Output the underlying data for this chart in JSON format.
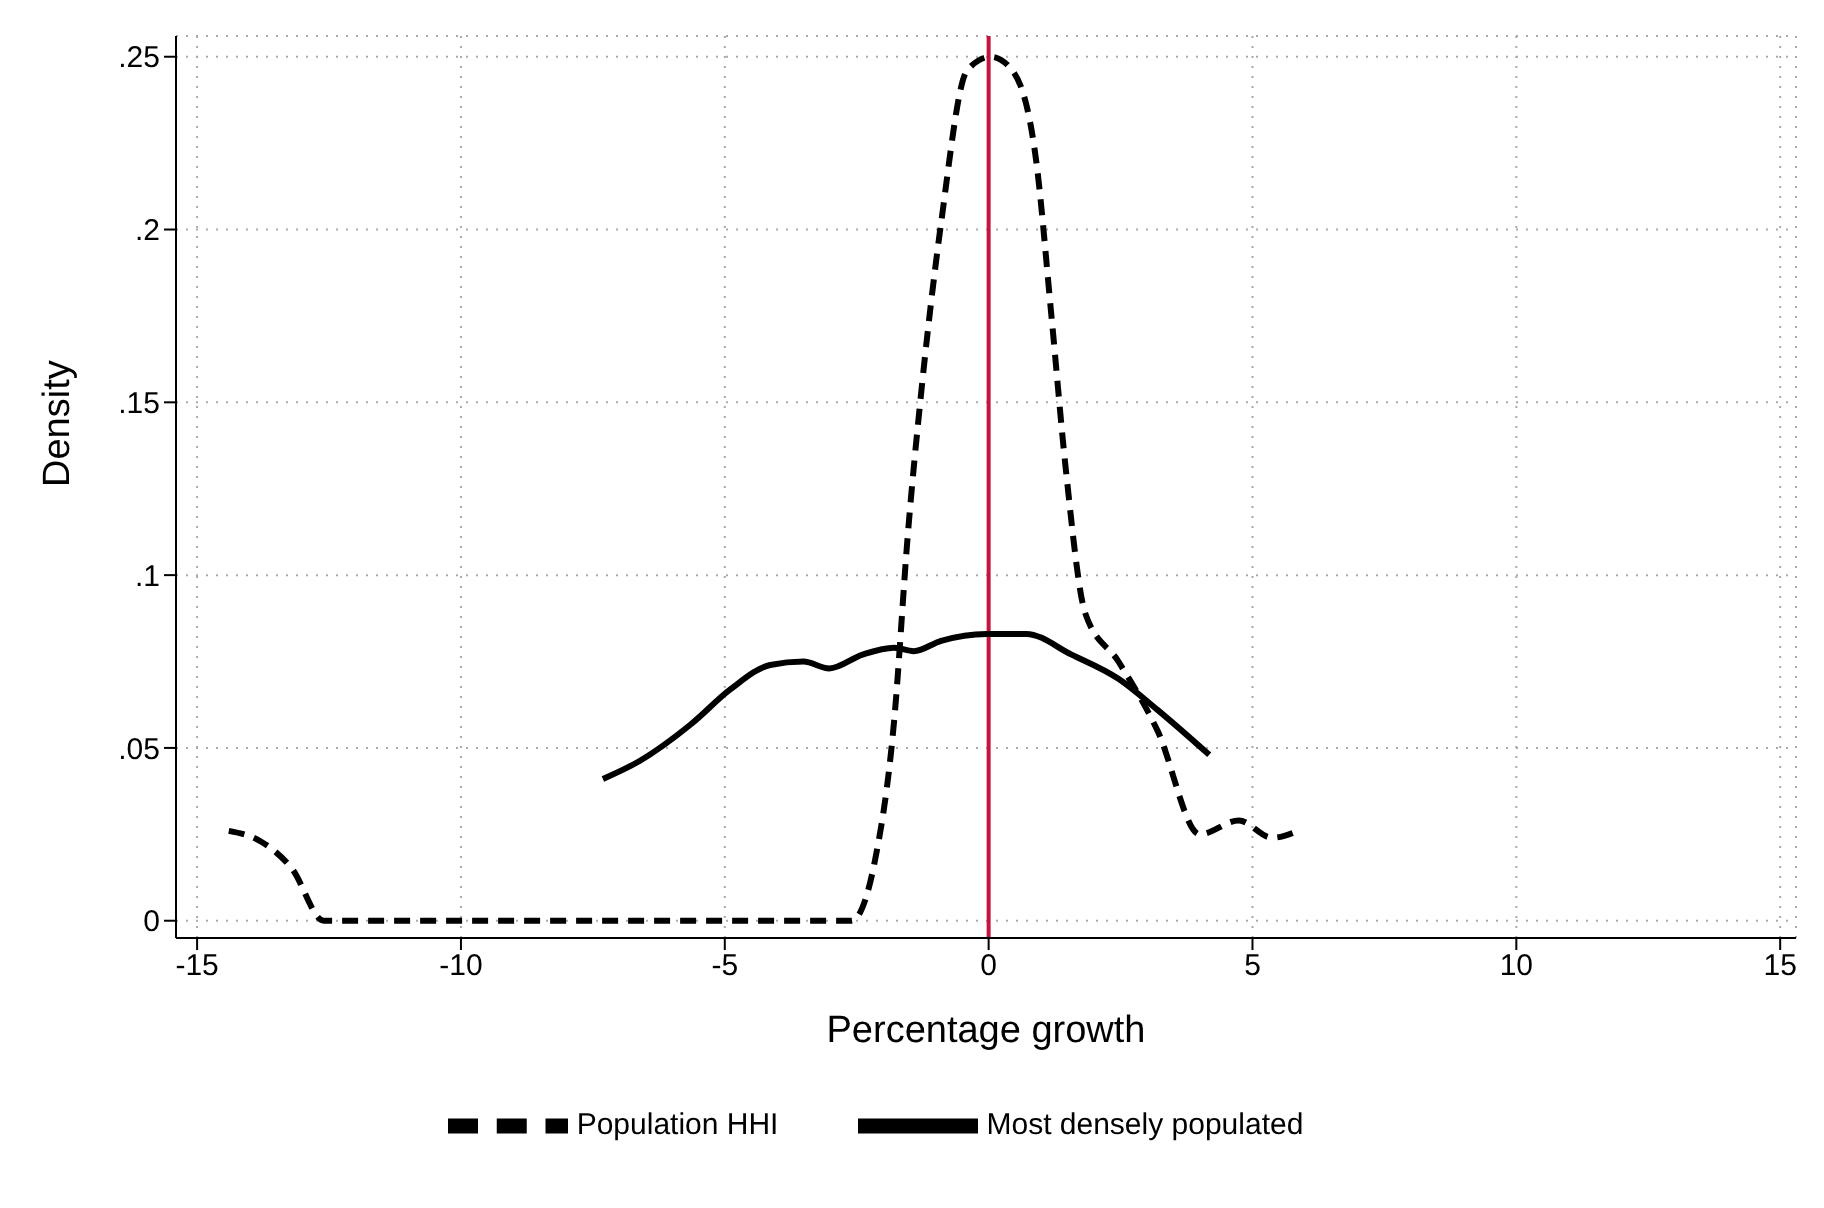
{
  "chart_data": {
    "type": "line",
    "xlabel": "Percentage growth",
    "ylabel": "Density",
    "xlim": [
      -15.4,
      15.3
    ],
    "xticks": [
      -15,
      -10,
      -5,
      0,
      5,
      10,
      15
    ],
    "ylim": [
      -0.005,
      0.256
    ],
    "yticks": [
      {
        "value": 0,
        "label": "0"
      },
      {
        "value": 0.05,
        "label": ".05"
      },
      {
        "value": 0.1,
        "label": ".1"
      },
      {
        "value": 0.15,
        "label": ".15"
      },
      {
        "value": 0.2,
        "label": ".2"
      },
      {
        "value": 0.25,
        "label": ".25"
      }
    ],
    "grid": true,
    "legend": "bottom",
    "marker": "none",
    "ref_lines": [
      {
        "axis": "x",
        "value": 0,
        "color": "#c8143c"
      }
    ],
    "series": [
      {
        "name": "Population HHI",
        "color": "#000000",
        "line_style": "dashed",
        "x": [
          -14.4,
          -13.8,
          -13.2,
          -12.6,
          -2.6,
          -2.16,
          -1.79,
          -1.53,
          -1.27,
          -0.9,
          -0.41,
          0.04,
          0.45,
          0.9,
          1.19,
          1.46,
          1.83,
          2.46,
          3.2,
          4.0,
          4.74,
          5.37,
          5.86
        ],
        "values": [
          0.026,
          0.023,
          0.015,
          0,
          0,
          0.017,
          0.058,
          0.112,
          0.154,
          0.202,
          0.246,
          0.25,
          0.246,
          0.22,
          0.175,
          0.131,
          0.089,
          0.075,
          0.055,
          0.025,
          0.029,
          0.024,
          0.026
        ]
      },
      {
        "name": "Most densely populated",
        "color": "#000000",
        "line_style": "solid",
        "x": [
          -7.31,
          -6.64,
          -5.63,
          -4.89,
          -4.14,
          -3.51,
          -3.02,
          -2.39,
          -1.79,
          -1.42,
          -0.9,
          -0.04,
          0.71,
          1.57,
          2.46,
          3.2,
          4.18
        ],
        "values": [
          0.041,
          0.046,
          0.057,
          0.067,
          0.074,
          0.075,
          0.073,
          0.077,
          0.079,
          0.078,
          0.081,
          0.083,
          0.083,
          0.077,
          0.07,
          0.061,
          0.048
        ]
      }
    ]
  }
}
